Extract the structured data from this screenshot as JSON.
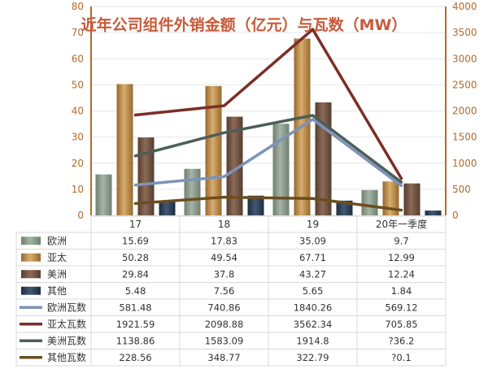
{
  "chart_data": {
    "type": "bar",
    "title": "近年公司组件外销金额（亿元）与瓦数（MW）",
    "categories": [
      "17",
      "18",
      "19",
      "20年一季度"
    ],
    "y_left": {
      "range": [
        0,
        80
      ],
      "ticks": [
        "0",
        "10",
        "20",
        "30",
        "40",
        "50",
        "60",
        "70",
        "80"
      ]
    },
    "y_right": {
      "range": [
        0,
        4000
      ],
      "ticks": [
        "0",
        "500",
        "1000",
        "1500",
        "2000",
        "2500",
        "3000",
        "3500",
        "4000"
      ]
    },
    "bar_series": [
      {
        "name": "欧洲",
        "color": "#8a9a8c",
        "values": [
          15.69,
          17.83,
          35.09,
          9.7
        ]
      },
      {
        "name": "亚太",
        "color": "#b58848",
        "values": [
          50.28,
          49.54,
          67.71,
          12.99
        ]
      },
      {
        "name": "美洲",
        "color": "#6e5140",
        "values": [
          29.84,
          37.8,
          43.27,
          12.24
        ]
      },
      {
        "name": "其他",
        "color": "#2c3e55",
        "values": [
          5.48,
          7.56,
          5.65,
          1.84
        ]
      }
    ],
    "line_series": [
      {
        "name": "欧洲瓦数",
        "color": "#7d93b8",
        "values": [
          581.48,
          740.86,
          1840.26,
          569.12
        ]
      },
      {
        "name": "亚太瓦数",
        "color": "#7b2e26",
        "values": [
          1921.59,
          2098.88,
          3562.34,
          705.85
        ]
      },
      {
        "name": "美洲瓦数",
        "color": "#4c5e58",
        "values": [
          1138.86,
          1583.09,
          1914.8,
          636.2
        ]
      },
      {
        "name": "其他瓦数",
        "color": "#6b4e1f",
        "values": [
          228.56,
          348.77,
          322.79,
          100.1
        ]
      }
    ],
    "table_text": [
      [
        "15.69",
        "17.83",
        "35.09",
        "9.7"
      ],
      [
        "50.28",
        "49.54",
        "67.71",
        "12.99"
      ],
      [
        "29.84",
        "37.8",
        "43.27",
        "12.24"
      ],
      [
        "5.48",
        "7.56",
        "5.65",
        "1.84"
      ],
      [
        "581.48",
        "740.86",
        "1840.26",
        "569.12"
      ],
      [
        "1921.59",
        "2098.88",
        "3562.34",
        "705.85"
      ],
      [
        "1138.86",
        "1583.09",
        "1914.8",
        "?36.2"
      ],
      [
        "228.56",
        "348.77",
        "322.79",
        "?0.1"
      ]
    ]
  }
}
